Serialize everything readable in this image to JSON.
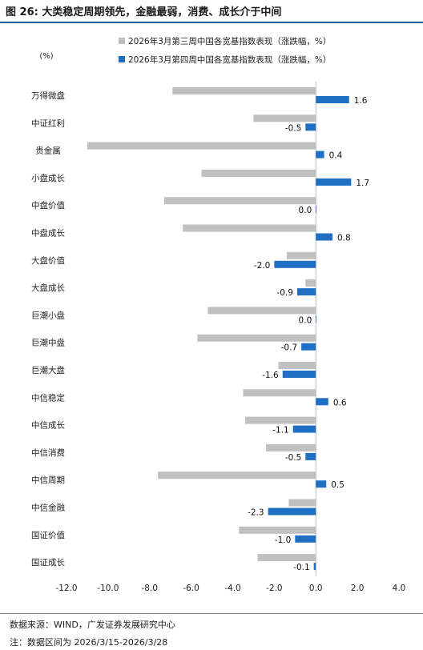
{
  "figure": {
    "title": "图 26:  大类稳定周期领先，金融最弱，消费、成长介于中间",
    "source": "数据来源：WIND，广发证券发展研究中心",
    "note": "注：数据区间为 2026/3/15-2026/3/28"
  },
  "colors": {
    "series_prev": "#c0c0c0",
    "series_curr": "#1f6fc5",
    "title_rule": "#1f5fa8"
  },
  "chart_data": {
    "type": "bar",
    "orientation": "horizontal",
    "unit_label": "(%)",
    "categories": [
      "万得微盘",
      "中证红利",
      "贵金属",
      "小盘成长",
      "中盘价值",
      "中盘成长",
      "大盘价值",
      "大盘成长",
      "巨潮小盘",
      "巨潮中盘",
      "巨潮大盘",
      "中信稳定",
      "中信成长",
      "中信消费",
      "中信周期",
      "中信金融",
      "国证价值",
      "国证成长"
    ],
    "series": [
      {
        "name": "2026年3月第三周中国各宽基指数表现（涨跌幅，%）",
        "values": [
          -6.9,
          -3.0,
          -11.0,
          -5.5,
          -7.3,
          -6.4,
          -1.4,
          -0.5,
          -5.2,
          -5.7,
          -1.8,
          -3.5,
          -3.4,
          -2.4,
          -7.6,
          -1.3,
          -3.7,
          -2.8
        ],
        "labels": [
          "",
          "",
          "",
          "",
          "",
          "",
          "",
          "",
          "",
          "",
          "",
          "",
          "",
          "",
          "",
          "",
          "",
          ""
        ]
      },
      {
        "name": "2026年3月第四周中国各宽基指数表现（涨跌幅，%）",
        "values": [
          1.6,
          -0.5,
          0.4,
          1.7,
          0.0,
          0.8,
          -2.0,
          -0.9,
          0.0,
          -0.7,
          -1.6,
          0.6,
          -1.1,
          -0.5,
          0.5,
          -2.3,
          -1.0,
          -0.1
        ],
        "labels": [
          "1.6",
          "-0.5",
          "0.4",
          "1.7",
          "0.0",
          "0.8",
          "-2.0",
          "-0.9",
          "0.0",
          "-0.7",
          "-1.6",
          "0.6",
          "-1.1",
          "-0.5",
          "0.5",
          "-2.3",
          "-1.0",
          "-0.1"
        ]
      }
    ],
    "xlim": [
      -12,
      4
    ],
    "xticks": [
      -12,
      -10,
      -8,
      -6,
      -4,
      -2,
      0,
      2,
      4
    ],
    "xtick_labels": [
      "-12.0",
      "-10.0",
      "-8.0",
      "-6.0",
      "-4.0",
      "-2.0",
      "0.0",
      "2.0",
      "4.0"
    ],
    "legend_position": "top-center",
    "grid": false
  }
}
